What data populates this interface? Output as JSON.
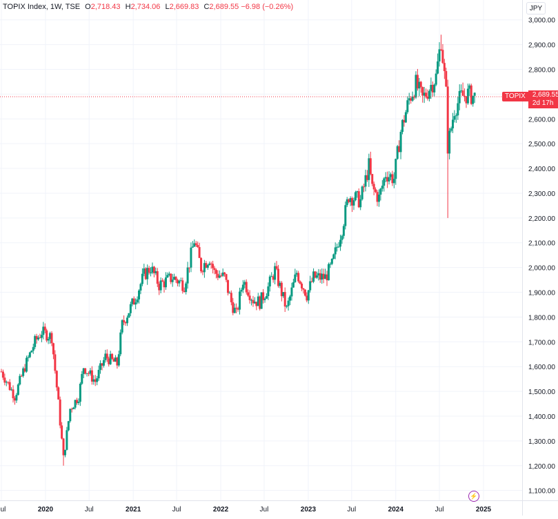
{
  "legend": {
    "symbol": "TOPIX Index, 1W, TSE",
    "o_label": "O",
    "o": "2,718.43",
    "h_label": "H",
    "h": "2,734.06",
    "l_label": "L",
    "l": "2,669.83",
    "c_label": "C",
    "c": "2,689.55",
    "change": "−6.98 (−0.26%)"
  },
  "currency": "JPY",
  "price_tag": {
    "name": "TOPIX",
    "price": "2,689.55",
    "countdown": "2d 17h"
  },
  "events_icon": "lightning-icon",
  "colors": {
    "up": "#089981",
    "down": "#f23645",
    "grid": "#f0f3fa",
    "axis_text": "#131722"
  },
  "chart_data": {
    "type": "candlestick",
    "title": "TOPIX Index, 1W, TSE",
    "ylim": [
      1060,
      3080
    ],
    "y_ticks": [
      1100,
      1200,
      1300,
      1400,
      1500,
      1600,
      1700,
      1800,
      1900,
      2000,
      2100,
      2200,
      2300,
      2400,
      2500,
      2600,
      2700,
      2800,
      2900,
      3000
    ],
    "y_tick_labels": [
      "1,100.00",
      "1,200.00",
      "1,300.00",
      "1,400.00",
      "1,500.00",
      "1,600.00",
      "1,700.00",
      "1,800.00",
      "1,900.00",
      "2,000.00",
      "2,100.00",
      "2,200.00",
      "2,300.00",
      "2,400.00",
      "2,500.00",
      "2,600.00",
      "2,700.00",
      "2,800.00",
      "2,900.00",
      "3,000.00"
    ],
    "x_ticks": [
      {
        "label": "Jul",
        "date": "2019-07"
      },
      {
        "label": "2020",
        "date": "2020-01"
      },
      {
        "label": "Jul",
        "date": "2020-07"
      },
      {
        "label": "2021",
        "date": "2021-01"
      },
      {
        "label": "Jul",
        "date": "2021-07"
      },
      {
        "label": "2022",
        "date": "2022-01"
      },
      {
        "label": "Jul",
        "date": "2022-07"
      },
      {
        "label": "2023",
        "date": "2023-01"
      },
      {
        "label": "Jul",
        "date": "2023-07"
      },
      {
        "label": "2024",
        "date": "2024-01"
      },
      {
        "label": "Jul",
        "date": "2024-07"
      },
      {
        "label": "2025",
        "date": "2025-01"
      }
    ],
    "last_price": 2689.55,
    "grid": true,
    "close_path": [
      [
        "2019-07-01",
        1580
      ],
      [
        "2019-08-26",
        1480
      ],
      [
        "2019-10-07",
        1600
      ],
      [
        "2019-11-18",
        1700
      ],
      [
        "2019-12-16",
        1740
      ],
      [
        "2020-01-27",
        1720
      ],
      [
        "2020-02-24",
        1450
      ],
      [
        "2020-03-16",
        1230
      ],
      [
        "2020-04-13",
        1430
      ],
      [
        "2020-05-18",
        1480
      ],
      [
        "2020-06-08",
        1600
      ],
      [
        "2020-07-27",
        1540
      ],
      [
        "2020-09-07",
        1640
      ],
      [
        "2020-10-26",
        1610
      ],
      [
        "2020-11-16",
        1770
      ],
      [
        "2021-01-11",
        1880
      ],
      [
        "2021-02-15",
        1970
      ],
      [
        "2021-03-15",
        2000
      ],
      [
        "2021-04-19",
        1930
      ],
      [
        "2021-06-14",
        1960
      ],
      [
        "2021-08-02",
        1930
      ],
      [
        "2021-09-13",
        2110
      ],
      [
        "2021-10-11",
        2000
      ],
      [
        "2021-11-15",
        2040
      ],
      [
        "2021-12-06",
        1980
      ],
      [
        "2022-01-17",
        1960
      ],
      [
        "2022-02-14",
        1860
      ],
      [
        "2022-03-07",
        1810
      ],
      [
        "2022-04-04",
        1950
      ],
      [
        "2022-05-16",
        1870
      ],
      [
        "2022-06-13",
        1860
      ],
      [
        "2022-07-18",
        1920
      ],
      [
        "2022-08-15",
        1990
      ],
      [
        "2022-10-03",
        1830
      ],
      [
        "2022-11-14",
        1980
      ],
      [
        "2022-12-26",
        1890
      ],
      [
        "2023-01-23",
        1960
      ],
      [
        "2023-03-13",
        1960
      ],
      [
        "2023-04-10",
        2010
      ],
      [
        "2023-05-22",
        2160
      ],
      [
        "2023-06-19",
        2290
      ],
      [
        "2023-08-07",
        2270
      ],
      [
        "2023-09-11",
        2410
      ],
      [
        "2023-09-25",
        2320
      ],
      [
        "2023-10-23",
        2280
      ],
      [
        "2023-11-20",
        2380
      ],
      [
        "2023-12-25",
        2360
      ],
      [
        "2024-01-22",
        2550
      ],
      [
        "2024-02-26",
        2680
      ],
      [
        "2024-03-25",
        2740
      ],
      [
        "2024-04-22",
        2680
      ],
      [
        "2024-06-17",
        2770
      ],
      [
        "2024-07-08",
        2920
      ],
      [
        "2024-07-29",
        2700
      ],
      [
        "2024-08-05",
        2490
      ],
      [
        "2024-09-02",
        2640
      ],
      [
        "2024-09-30",
        2690
      ],
      [
        "2024-10-28",
        2700
      ],
      [
        "2024-11-25",
        2690
      ]
    ],
    "notable_lows": [
      [
        "2020-03-16",
        1200
      ],
      [
        "2024-08-05",
        2200
      ]
    ],
    "notable_highs": [
      [
        "2024-07-08",
        2940
      ]
    ]
  }
}
